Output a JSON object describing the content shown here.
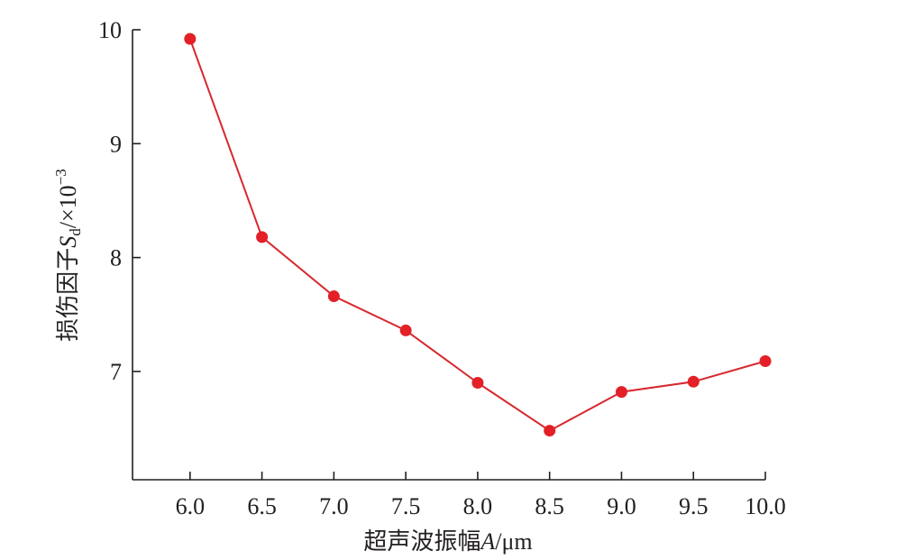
{
  "chart_data": {
    "type": "line",
    "title": "",
    "x": [
      6.0,
      6.5,
      7.0,
      7.5,
      8.0,
      8.5,
      9.0,
      9.5,
      10.0
    ],
    "x_tick_labels": [
      "6.0",
      "6.5",
      "7.0",
      "7.5",
      "8.0",
      "8.5",
      "9.0",
      "9.5",
      "10.0"
    ],
    "series": [
      {
        "values": [
          9.92,
          8.18,
          7.66,
          7.36,
          6.9,
          6.48,
          6.82,
          6.91,
          7.09
        ]
      }
    ],
    "xlim": [
      5.6,
      10.0
    ],
    "ylim": [
      6.0,
      10.0
    ],
    "y_ticks": [
      7,
      8,
      9,
      10
    ],
    "y_tick_labels": [
      "7",
      "8",
      "9",
      "10"
    ],
    "xlabel": {
      "prefix": "超声波振幅",
      "var": "A",
      "unit": "/μm"
    },
    "ylabel": {
      "prefix": "损伤因子",
      "var": "S",
      "subscript": "d",
      "unit": "/×10",
      "exponent": "−3"
    },
    "grid": false,
    "legend": "none",
    "colors": {
      "line": "#d7282f",
      "marker": "#e32027",
      "axis": "#231f20"
    }
  }
}
